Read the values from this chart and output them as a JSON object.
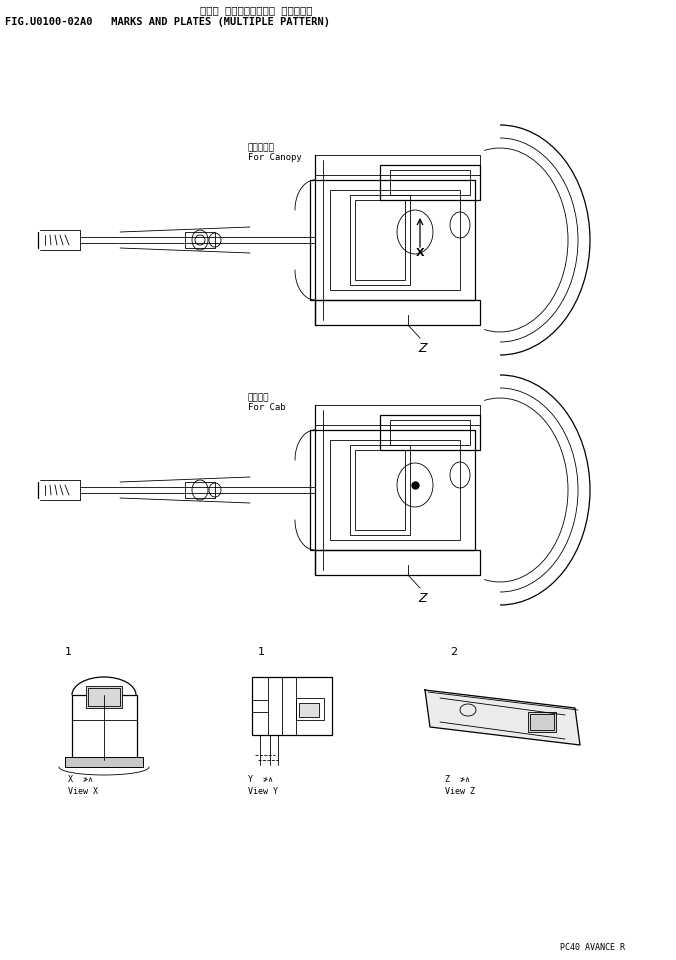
{
  "title_line1": "マーク プレート（マルチ パターン）",
  "title_line2": "FIG.U0100-02A0   MARKS AND PLATES (MULTIPLE PATTERN)",
  "footer": "PC40 AVANCE R",
  "label_canopy_jp": "キャノピ用",
  "label_canopy_en": "For Canopy",
  "label_cab_jp": "キャブ用",
  "label_cab_en": "For Cab",
  "view_x_jp": "X  ≯∧",
  "view_x_en": "View X",
  "view_y_jp": "Y  ≯∧",
  "view_y_en": "View Y",
  "view_z_jp": "Z  ≯∧",
  "view_z_en": "View Z",
  "bg_color": "#ffffff",
  "line_color": "#000000",
  "text_color": "#000000",
  "font_size_title": 7.5,
  "font_size_label": 6.5,
  "font_size_small": 6.0
}
